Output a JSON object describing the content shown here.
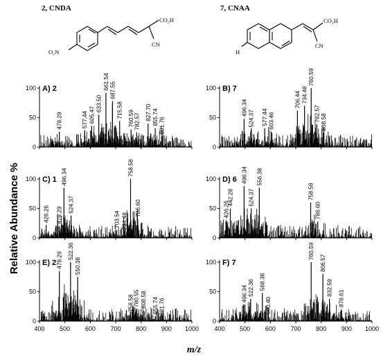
{
  "header": {
    "left_title": "2, CNDA",
    "right_title": "7, CNAA"
  },
  "structures": {
    "left": {
      "acid": "CO₂H",
      "nitrile": "CN",
      "substituent": "O₂N"
    },
    "right": {
      "acid": "CO₂H",
      "nitrile": "CN",
      "substituent": "H"
    }
  },
  "figure": {
    "ylabel": "Relative Abundance %",
    "xlabel": "m/z"
  },
  "chart_data": [
    {
      "type": "bar",
      "panel": "A",
      "label": "A) 2",
      "xlim": [
        400,
        1000
      ],
      "ylim": [
        0,
        100
      ],
      "xticks": [
        400,
        500,
        600,
        700,
        800,
        900,
        1000
      ],
      "yticks": [
        0,
        50,
        100
      ],
      "peaks": [
        {
          "mz": 478.29,
          "label": "478.29",
          "y": 26
        },
        {
          "mz": 577.44,
          "label": "577.44",
          "y": 28
        },
        {
          "mz": 605.47,
          "label": "605.47",
          "y": 36
        },
        {
          "mz": 633.5,
          "label": "633.50",
          "y": 55
        },
        {
          "mz": 661.54,
          "label": "661.54",
          "y": 92
        },
        {
          "mz": 687.55,
          "label": "687.55",
          "y": 78
        },
        {
          "mz": 715.58,
          "label": "715.58",
          "y": 44
        },
        {
          "mz": 760.59,
          "label": "760.59",
          "y": 30
        },
        {
          "mz": 782.57,
          "label": "782.57",
          "y": 25
        },
        {
          "mz": 827.7,
          "label": "827.70",
          "y": 40
        },
        {
          "mz": 855.74,
          "label": "855.74",
          "y": 32
        },
        {
          "mz": 881.76,
          "label": "881.76",
          "y": 18
        }
      ]
    },
    {
      "type": "bar",
      "panel": "B",
      "label": "B) 7",
      "xlim": [
        400,
        1000
      ],
      "ylim": [
        0,
        100
      ],
      "xticks": [
        400,
        500,
        600,
        700,
        800,
        900,
        1000
      ],
      "yticks": [
        0,
        50,
        100
      ],
      "peaks": [
        {
          "mz": 496.34,
          "label": "496.34",
          "y": 48
        },
        {
          "mz": 524.37,
          "label": "524.37",
          "y": 30
        },
        {
          "mz": 577.44,
          "label": "577.44",
          "y": 32
        },
        {
          "mz": 603.46,
          "label": "603.46",
          "y": 26
        },
        {
          "mz": 706.44,
          "label": "706.44",
          "y": 62
        },
        {
          "mz": 734.48,
          "label": "734.48",
          "y": 70
        },
        {
          "mz": 760.59,
          "label": "760.59",
          "y": 100
        },
        {
          "mz": 782.57,
          "label": "782.57",
          "y": 38
        },
        {
          "mz": 808.58,
          "label": "808.58",
          "y": 24
        }
      ]
    },
    {
      "type": "bar",
      "panel": "C",
      "label": "C) 1",
      "xlim": [
        400,
        1000
      ],
      "ylim": [
        0,
        100
      ],
      "xticks": [
        400,
        500,
        600,
        700,
        800,
        900,
        1000
      ],
      "yticks": [
        0,
        50,
        100
      ],
      "peaks": [
        {
          "mz": 426.26,
          "label": "426.26",
          "y": 22
        },
        {
          "mz": 478.29,
          "label": "478.29",
          "y": 20
        },
        {
          "mz": 496.34,
          "label": "496.34",
          "y": 85
        },
        {
          "mz": 524.37,
          "label": "524.37",
          "y": 38
        },
        {
          "mz": 703.54,
          "label": "703.54",
          "y": 13
        },
        {
          "mz": 734.48,
          "label": "734.48",
          "y": 10
        },
        {
          "mz": 758.58,
          "label": "758.58",
          "y": 100
        },
        {
          "mz": 786.6,
          "label": "786.60",
          "y": 32
        }
      ]
    },
    {
      "type": "bar",
      "panel": "D",
      "label": "D) 6",
      "xlim": [
        400,
        1000
      ],
      "ylim": [
        0,
        100
      ],
      "xticks": [
        400,
        500,
        600,
        700,
        800,
        900,
        1000
      ],
      "yticks": [
        0,
        50,
        100
      ],
      "peaks": [
        {
          "mz": 426.26,
          "label": "426.26",
          "y": 30
        },
        {
          "mz": 442.28,
          "label": "442.28",
          "y": 50
        },
        {
          "mz": 496.34,
          "label": "496.34",
          "y": 88
        },
        {
          "mz": 524.37,
          "label": "524.37",
          "y": 50
        },
        {
          "mz": 556.38,
          "label": "556.38",
          "y": 85
        },
        {
          "mz": 758.58,
          "label": "758.58",
          "y": 60
        },
        {
          "mz": 786.6,
          "label": "786.60",
          "y": 28
        }
      ]
    },
    {
      "type": "bar",
      "panel": "E",
      "label": "E) 2",
      "xlim": [
        400,
        1000
      ],
      "ylim": [
        0,
        100
      ],
      "xticks": [
        400,
        500,
        600,
        700,
        800,
        900,
        1000
      ],
      "yticks": [
        0,
        50,
        100
      ],
      "peaks": [
        {
          "mz": 478.29,
          "label": "478.29",
          "y": 85
        },
        {
          "mz": 522.36,
          "label": "522.36",
          "y": 100
        },
        {
          "mz": 550.38,
          "label": "550.38",
          "y": 75
        },
        {
          "mz": 758.58,
          "label": "758.58",
          "y": 12
        },
        {
          "mz": 780.55,
          "label": "780.55",
          "y": 20
        },
        {
          "mz": 808.58,
          "label": "808.58",
          "y": 18
        },
        {
          "mz": 855.74,
          "label": "855.74",
          "y": 8
        },
        {
          "mz": 881.76,
          "label": "881.76",
          "y": 6
        }
      ]
    },
    {
      "type": "bar",
      "panel": "F",
      "label": "F) 7",
      "xlim": [
        400,
        1000
      ],
      "ylim": [
        0,
        100
      ],
      "xticks": [
        400,
        500,
        600,
        700,
        800,
        900,
        1000
      ],
      "yticks": [
        0,
        50,
        100
      ],
      "peaks": [
        {
          "mz": 496.34,
          "label": "496.34",
          "y": 28
        },
        {
          "mz": 522.36,
          "label": "522.36",
          "y": 38
        },
        {
          "mz": 568.38,
          "label": "568.38",
          "y": 48
        },
        {
          "mz": 590.4,
          "label": "590.40",
          "y": 8
        },
        {
          "mz": 760.59,
          "label": "760.59",
          "y": 100
        },
        {
          "mz": 806.57,
          "label": "806.57",
          "y": 80
        },
        {
          "mz": 832.59,
          "label": "832.59",
          "y": 38
        },
        {
          "mz": 878.61,
          "label": "878.61",
          "y": 20
        }
      ]
    }
  ]
}
